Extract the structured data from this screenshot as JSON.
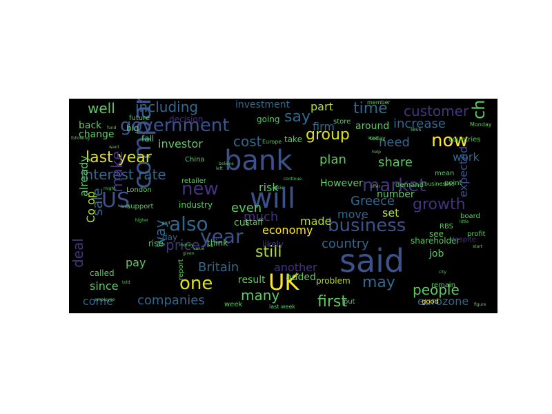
{
  "wordcloud": {
    "background": "#000000",
    "words": [
      {
        "text": "said",
        "color": "#3b528b"
      },
      {
        "text": "bank",
        "color": "#3b528b"
      },
      {
        "text": "will",
        "color": "#3b528b"
      },
      {
        "text": "UK",
        "color": "#fde725"
      },
      {
        "text": "company",
        "color": "#3b528b"
      },
      {
        "text": "government",
        "color": "#3b528b"
      },
      {
        "text": "market",
        "color": "#46337e"
      },
      {
        "text": "business",
        "color": "#3b528b"
      },
      {
        "text": "chief executive",
        "color": "#5ec962"
      },
      {
        "text": "US",
        "color": "#3b528b"
      },
      {
        "text": "year",
        "color": "#3b528b"
      },
      {
        "text": "also",
        "color": "#31688e"
      },
      {
        "text": "new",
        "color": "#46337e"
      },
      {
        "text": "last year",
        "color": "#dde318"
      },
      {
        "text": "now",
        "color": "#fde725"
      },
      {
        "text": "customer",
        "color": "#46337e"
      },
      {
        "text": "one",
        "color": "#dde318"
      },
      {
        "text": "time",
        "color": "#31688e"
      },
      {
        "text": "group",
        "color": "#dde318"
      },
      {
        "text": "interest rate",
        "color": "#31688e"
      },
      {
        "text": "including",
        "color": "#31688e"
      },
      {
        "text": "growth",
        "color": "#46337e"
      },
      {
        "text": "Greece",
        "color": "#31688e"
      },
      {
        "text": "still",
        "color": "#b5de2b"
      },
      {
        "text": "cost",
        "color": "#31688e"
      },
      {
        "text": "people",
        "color": "#5ec962"
      },
      {
        "text": "deal",
        "color": "#46337e"
      },
      {
        "text": "Britain",
        "color": "#31688e"
      },
      {
        "text": "may",
        "color": "#31688e"
      },
      {
        "text": "first",
        "color": "#5ec962"
      },
      {
        "text": "well",
        "color": "#5ec962"
      },
      {
        "text": "say",
        "color": "#31688e"
      },
      {
        "text": "need",
        "color": "#31688e"
      },
      {
        "text": "plan",
        "color": "#5ec962"
      },
      {
        "text": "share",
        "color": "#5ec962"
      },
      {
        "text": "price",
        "color": "#46337e"
      },
      {
        "text": "many",
        "color": "#5ec962"
      },
      {
        "text": "increase",
        "color": "#31688e"
      },
      {
        "text": "make",
        "color": "#46337e"
      },
      {
        "text": "sale",
        "color": "#31688e"
      },
      {
        "text": "way",
        "color": "#31688e"
      },
      {
        "text": "even",
        "color": "#5ec962"
      },
      {
        "text": "much",
        "color": "#46337e"
      },
      {
        "text": "economy",
        "color": "#fde725"
      },
      {
        "text": "made",
        "color": "#b5de2b"
      },
      {
        "text": "country",
        "color": "#31688e"
      },
      {
        "text": "eurozone",
        "color": "#31688e"
      },
      {
        "text": "companies",
        "color": "#31688e"
      },
      {
        "text": "investor",
        "color": "#5ec962"
      },
      {
        "text": "firm",
        "color": "#31688e"
      },
      {
        "text": "work",
        "color": "#31688e"
      },
      {
        "text": "expected",
        "color": "#3b528b"
      },
      {
        "text": "However",
        "color": "#5ec962"
      },
      {
        "text": "risk",
        "color": "#5ec962"
      },
      {
        "text": "set",
        "color": "#b5de2b"
      },
      {
        "text": "move",
        "color": "#31688e"
      },
      {
        "text": "result",
        "color": "#5ec962"
      },
      {
        "text": "another",
        "color": "#46337e"
      },
      {
        "text": "come",
        "color": "#31688e"
      },
      {
        "text": "since",
        "color": "#5ec962"
      },
      {
        "text": "pay",
        "color": "#5ec962"
      },
      {
        "text": "back",
        "color": "#5ec962"
      },
      {
        "text": "change",
        "color": "#5ec962"
      },
      {
        "text": "Co op",
        "color": "#b5de2b"
      },
      {
        "text": "already",
        "color": "#5ec962"
      },
      {
        "text": "investment",
        "color": "#31688e"
      },
      {
        "text": "going",
        "color": "#5ec962"
      },
      {
        "text": "part",
        "color": "#b5de2b"
      },
      {
        "text": "around",
        "color": "#5ec962"
      },
      {
        "text": "number",
        "color": "#5ec962"
      },
      {
        "text": "job",
        "color": "#5ec962"
      },
      {
        "text": "added",
        "color": "#5ec962"
      },
      {
        "text": "problem",
        "color": "#b5de2b"
      },
      {
        "text": "cut",
        "color": "#5ec962"
      },
      {
        "text": "industry",
        "color": "#5ec962"
      },
      {
        "text": "called",
        "color": "#5ec962"
      },
      {
        "text": "report",
        "color": "#5ec962"
      },
      {
        "text": "shareholder",
        "color": "#5ec962"
      },
      {
        "text": "staff",
        "color": "#5ec962"
      },
      {
        "text": "likely",
        "color": "#46337e"
      },
      {
        "text": "retailer",
        "color": "#5ec962"
      },
      {
        "text": "day",
        "color": "#31688e"
      },
      {
        "text": "rise",
        "color": "#5ec962"
      },
      {
        "text": "fall",
        "color": "#5ec962"
      },
      {
        "text": "big",
        "color": "#5ec962"
      },
      {
        "text": "think",
        "color": "#5ec962"
      },
      {
        "text": "good",
        "color": "#fde725"
      },
      {
        "text": "remain",
        "color": "#5ec962"
      },
      {
        "text": "take",
        "color": "#5ec962"
      },
      {
        "text": "decision",
        "color": "#46337e"
      },
      {
        "text": "future",
        "color": "#5ec962"
      },
      {
        "text": "week",
        "color": "#5ec962"
      },
      {
        "text": "last week",
        "color": "#5ec962"
      },
      {
        "text": "see",
        "color": "#5ec962"
      },
      {
        "text": "despite",
        "color": "#46337e"
      },
      {
        "text": "profit",
        "color": "#5ec962"
      },
      {
        "text": "board",
        "color": "#5ec962"
      },
      {
        "text": "point",
        "color": "#5ec962"
      },
      {
        "text": "mean",
        "color": "#5ec962"
      },
      {
        "text": "demand",
        "color": "#5ec962"
      },
      {
        "text": "China",
        "color": "#5ec962"
      },
      {
        "text": "London",
        "color": "#5ec962"
      },
      {
        "text": "support",
        "color": "#5ec962"
      },
      {
        "text": "countries",
        "color": "#5ec962"
      },
      {
        "text": "member",
        "color": "#5ec962"
      },
      {
        "text": "store",
        "color": "#5ec962"
      },
      {
        "text": "RBS",
        "color": "#5ec962"
      },
      {
        "text": "put",
        "color": "#5ec962"
      },
      {
        "text": "want",
        "color": "#5ec962"
      },
      {
        "text": "following",
        "color": "#5ec962"
      },
      {
        "text": "left",
        "color": "#5ec962"
      },
      {
        "text": "least",
        "color": "#5ec962"
      },
      {
        "text": "given",
        "color": "#5ec962"
      },
      {
        "text": "might",
        "color": "#5ec962"
      },
      {
        "text": "Europe",
        "color": "#5ec962"
      },
      {
        "text": "businesses",
        "color": "#5ec962"
      },
      {
        "text": "less",
        "color": "#5ec962"
      },
      {
        "text": "money",
        "color": "#5ec962"
      },
      {
        "text": "Monday",
        "color": "#5ec962"
      },
      {
        "text": "today",
        "color": "#5ec962"
      },
      {
        "text": "offer",
        "color": "#5ec962"
      },
      {
        "text": "crisis",
        "color": "#5ec962"
      },
      {
        "text": "believe",
        "color": "#5ec962"
      },
      {
        "text": "continue",
        "color": "#5ec962"
      },
      {
        "text": "help",
        "color": "#5ec962"
      },
      {
        "text": "loan",
        "color": "#5ec962"
      },
      {
        "text": "figure",
        "color": "#5ec962"
      },
      {
        "text": "start",
        "color": "#5ec962"
      },
      {
        "text": "end",
        "color": "#5ec962"
      },
      {
        "text": "city",
        "color": "#5ec962"
      },
      {
        "text": "little",
        "color": "#5ec962"
      },
      {
        "text": "bid",
        "color": "#5ec962"
      },
      {
        "text": "value",
        "color": "#5ec962"
      },
      {
        "text": "employee",
        "color": "#5ec962"
      },
      {
        "text": "higher",
        "color": "#5ec962"
      },
      {
        "text": "told",
        "color": "#5ec962"
      },
      {
        "text": "fund",
        "color": "#5ec962"
      },
      {
        "text": "lower",
        "color": "#5ec962"
      },
      {
        "text": "next",
        "color": "#5ec962"
      }
    ]
  }
}
